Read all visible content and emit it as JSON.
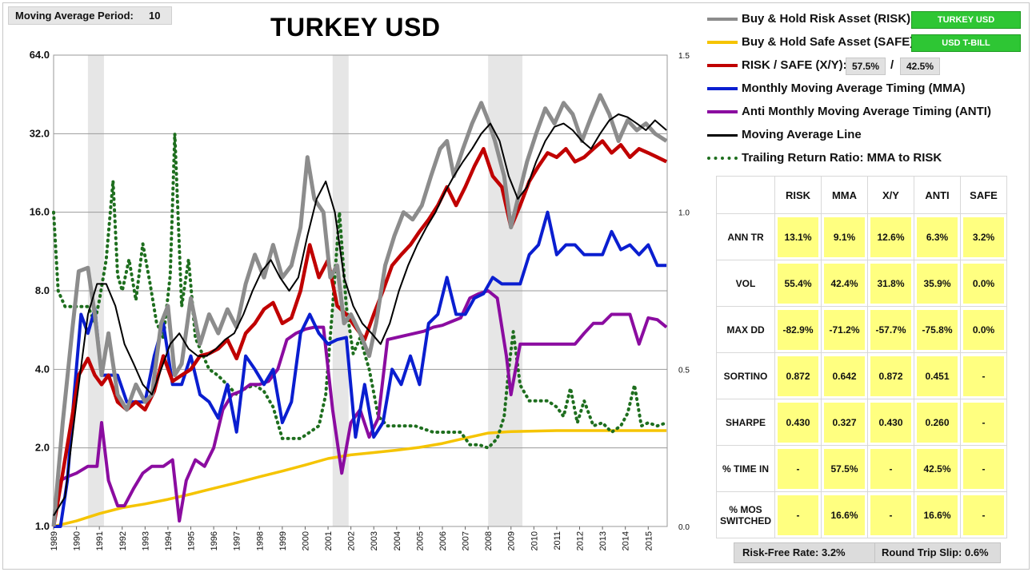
{
  "moving_average": {
    "label": "Moving Average Period:",
    "value": "10"
  },
  "title": "TURKEY USD",
  "legend": {
    "risk": {
      "label": "Buy & Hold Risk Asset (RISK):",
      "asset": "TURKEY USD",
      "color": "#8c8c8c"
    },
    "safe": {
      "label": "Buy & Hold Safe Asset (SAFE):",
      "asset": "USD T-BILL",
      "color": "#f5c400"
    },
    "ratio": {
      "label": "RISK / SAFE (X/Y):",
      "risk_pct": "57.5%",
      "separator": "/",
      "safe_pct": "42.5%",
      "color": "#c00000"
    },
    "mma": {
      "label": "Monthly Moving Average Timing (MMA)",
      "color": "#0a1ed0"
    },
    "anti": {
      "label": "Anti Monthly Moving Average Timing (ANTI)",
      "color": "#8b0ca0"
    },
    "ma_line": {
      "label": "Moving Average Line",
      "color": "#000000"
    },
    "trailing": {
      "label": "Trailing Return Ratio: MMA to RISK",
      "color": "#1e6e1e"
    }
  },
  "stats_table": {
    "columns": [
      "RISK",
      "MMA",
      "X/Y",
      "ANTI",
      "SAFE"
    ],
    "rows": [
      {
        "label": "ANN TR",
        "values": [
          "13.1%",
          "9.1%",
          "12.6%",
          "6.3%",
          "3.2%"
        ]
      },
      {
        "label": "VOL",
        "values": [
          "55.4%",
          "42.4%",
          "31.8%",
          "35.9%",
          "0.0%"
        ]
      },
      {
        "label": "MAX DD",
        "values": [
          "-82.9%",
          "-71.2%",
          "-57.7%",
          "-75.8%",
          "0.0%"
        ]
      },
      {
        "label": "SORTINO",
        "values": [
          "0.872",
          "0.642",
          "0.872",
          "0.451",
          "-"
        ]
      },
      {
        "label": "SHARPE",
        "values": [
          "0.430",
          "0.327",
          "0.430",
          "0.260",
          "-"
        ]
      },
      {
        "label": "% TIME IN",
        "values": [
          "-",
          "57.5%",
          "-",
          "42.5%",
          "-"
        ]
      },
      {
        "label": "% MOS SWITCHED",
        "values": [
          "-",
          "16.6%",
          "-",
          "16.6%",
          "-"
        ]
      }
    ]
  },
  "footer": {
    "risk_free": "Risk-Free Rate:   3.2%",
    "slip": "Round Trip Slip:  0.6%"
  },
  "chart_data": {
    "type": "line",
    "title": "TURKEY USD",
    "y_scale": "log2",
    "ylim": [
      1,
      64
    ],
    "y_ticks": [
      "64.0",
      "32.0",
      "16.0",
      "8.0",
      "4.0",
      "2.0",
      "1.0"
    ],
    "y2lim": [
      0,
      1.5
    ],
    "y2_ticks": [
      "1.5",
      "1.0",
      "0.5",
      "0.0"
    ],
    "xlim": [
      1989,
      2015.83
    ],
    "x_ticks": [
      "1989",
      "1990",
      "1991",
      "1992",
      "1993",
      "1994",
      "1995",
      "1996",
      "1997",
      "1998",
      "1999",
      "2000",
      "2001",
      "2002",
      "2003",
      "2004",
      "2005",
      "2006",
      "2007",
      "2008",
      "2009",
      "2010",
      "2011",
      "2012",
      "2013",
      "2014",
      "2015"
    ],
    "grid": true,
    "shaded_periods": [
      [
        1990.5,
        1991.2
      ],
      [
        2001.2,
        2001.9
      ],
      [
        2008.0,
        2009.5
      ]
    ],
    "series": [
      {
        "name": "Buy & Hold Risk Asset (RISK)",
        "key": "risk",
        "color": "#8c8c8c",
        "x": [
          1989.0,
          1989.4,
          1989.8,
          1990.1,
          1990.5,
          1990.8,
          1991.1,
          1991.4,
          1991.8,
          1992.2,
          1992.6,
          1993.0,
          1993.3,
          1993.7,
          1994.0,
          1994.3,
          1994.6,
          1995.0,
          1995.4,
          1995.8,
          1996.2,
          1996.6,
          1997.0,
          1997.4,
          1997.8,
          1998.2,
          1998.6,
          1999.0,
          1999.4,
          1999.8,
          2000.1,
          2000.4,
          2000.8,
          2001.1,
          2001.4,
          2001.7,
          2002.0,
          2002.4,
          2002.8,
          2003.1,
          2003.5,
          2003.9,
          2004.3,
          2004.7,
          2005.1,
          2005.5,
          2005.9,
          2006.2,
          2006.5,
          2006.9,
          2007.3,
          2007.7,
          2008.0,
          2008.3,
          2008.7,
          2009.0,
          2009.3,
          2009.7,
          2010.1,
          2010.5,
          2010.9,
          2011.3,
          2011.7,
          2012.1,
          2012.5,
          2012.9,
          2013.3,
          2013.7,
          2014.1,
          2014.5,
          2014.9,
          2015.3,
          2015.8
        ],
        "y": [
          1.0,
          2.5,
          5.5,
          9.5,
          9.8,
          6.5,
          3.8,
          5.5,
          3.2,
          2.8,
          3.5,
          3.0,
          3.2,
          6.0,
          7.0,
          3.8,
          4.2,
          7.5,
          5.0,
          6.5,
          5.5,
          6.8,
          5.8,
          8.5,
          11.0,
          9.0,
          12.0,
          9.0,
          10.0,
          14.0,
          26.0,
          18.0,
          16.0,
          9.0,
          10.0,
          6.0,
          6.5,
          5.5,
          4.5,
          6.0,
          10.0,
          13.0,
          16.0,
          15.0,
          17.0,
          22.0,
          28.0,
          30.0,
          22.0,
          28.0,
          35.0,
          42.0,
          36.0,
          30.0,
          22.0,
          14.0,
          18.0,
          25.0,
          32.0,
          40.0,
          35.0,
          42.0,
          38.0,
          30.0,
          37.0,
          45.0,
          38.0,
          30.0,
          36.0,
          33.0,
          35.0,
          32.0,
          30.0
        ]
      },
      {
        "name": "Buy & Hold Safe Asset (SAFE)",
        "key": "safe",
        "color": "#f5c400",
        "x": [
          1989.0,
          1990.0,
          1991.0,
          1992.0,
          1993.0,
          1994.0,
          1995.0,
          1996.0,
          1997.0,
          1998.0,
          1999.0,
          2000.0,
          2001.0,
          2002.0,
          2003.0,
          2004.0,
          2005.0,
          2006.0,
          2007.0,
          2008.0,
          2009.0,
          2010.0,
          2011.0,
          2012.0,
          2013.0,
          2014.0,
          2015.0,
          2015.8
        ],
        "y": [
          1.0,
          1.05,
          1.12,
          1.18,
          1.22,
          1.27,
          1.33,
          1.4,
          1.47,
          1.55,
          1.63,
          1.72,
          1.82,
          1.88,
          1.92,
          1.96,
          2.01,
          2.08,
          2.18,
          2.28,
          2.31,
          2.32,
          2.33,
          2.33,
          2.33,
          2.33,
          2.33,
          2.33
        ]
      },
      {
        "name": "RISK / SAFE (X/Y)",
        "key": "ratio",
        "color": "#c00000",
        "x": [
          1989.0,
          1989.4,
          1989.8,
          1990.1,
          1990.5,
          1990.8,
          1991.1,
          1991.4,
          1991.8,
          1992.2,
          1992.6,
          1993.0,
          1993.4,
          1993.8,
          1994.2,
          1994.6,
          1995.0,
          1995.4,
          1995.8,
          1996.2,
          1996.6,
          1997.0,
          1997.4,
          1997.8,
          1998.2,
          1998.6,
          1999.0,
          1999.4,
          1999.8,
          2000.2,
          2000.6,
          2001.0,
          2001.4,
          2001.8,
          2002.2,
          2002.6,
          2003.0,
          2003.4,
          2003.8,
          2004.2,
          2004.6,
          2005.0,
          2005.4,
          2005.8,
          2006.2,
          2006.6,
          2007.0,
          2007.4,
          2007.8,
          2008.2,
          2008.6,
          2009.0,
          2009.4,
          2009.8,
          2010.2,
          2010.6,
          2011.0,
          2011.4,
          2011.8,
          2012.2,
          2012.6,
          2013.0,
          2013.4,
          2013.8,
          2014.2,
          2014.6,
          2015.0,
          2015.4,
          2015.8
        ],
        "y": [
          1.0,
          1.6,
          2.6,
          3.8,
          4.4,
          3.8,
          3.5,
          3.8,
          3.0,
          2.8,
          3.0,
          2.8,
          3.3,
          4.5,
          3.6,
          3.8,
          4.0,
          4.5,
          4.6,
          4.8,
          5.2,
          4.4,
          5.5,
          6.0,
          6.8,
          7.2,
          6.0,
          6.3,
          8.0,
          12.0,
          9.0,
          10.5,
          7.0,
          6.5,
          5.8,
          5.2,
          6.5,
          8.0,
          10.0,
          11.0,
          12.0,
          13.5,
          15.0,
          17.0,
          20.0,
          17.0,
          20.0,
          24.0,
          28.0,
          22.0,
          20.0,
          14.0,
          17.0,
          21.0,
          24.0,
          27.0,
          26.0,
          28.0,
          25.0,
          26.0,
          28.0,
          30.0,
          27.0,
          29.0,
          26.0,
          28.0,
          27.0,
          26.0,
          25.0
        ]
      },
      {
        "name": "Monthly Moving Average Timing (MMA)",
        "key": "mma",
        "color": "#0a1ed0",
        "x": [
          1989.0,
          1989.3,
          1989.6,
          1989.9,
          1990.2,
          1990.5,
          1990.8,
          1991.1,
          1991.5,
          1991.8,
          1992.2,
          1992.6,
          1993.0,
          1993.4,
          1993.8,
          1994.2,
          1994.6,
          1995.0,
          1995.4,
          1995.8,
          1996.2,
          1996.6,
          1997.0,
          1997.4,
          1997.8,
          1998.2,
          1998.6,
          1999.0,
          1999.4,
          1999.8,
          2000.2,
          2000.6,
          2001.0,
          2001.4,
          2001.8,
          2002.2,
          2002.6,
          2003.0,
          2003.4,
          2003.8,
          2004.2,
          2004.6,
          2005.0,
          2005.4,
          2005.8,
          2006.2,
          2006.6,
          2007.0,
          2007.4,
          2007.8,
          2008.2,
          2008.6,
          2009.0,
          2009.4,
          2009.8,
          2010.2,
          2010.6,
          2011.0,
          2011.4,
          2011.8,
          2012.2,
          2012.6,
          2013.0,
          2013.4,
          2013.8,
          2014.2,
          2014.6,
          2015.0,
          2015.4,
          2015.8
        ],
        "y": [
          1.0,
          1.0,
          1.5,
          3.2,
          6.5,
          5.5,
          6.8,
          3.8,
          3.8,
          3.8,
          3.0,
          3.0,
          3.0,
          4.5,
          6.0,
          3.5,
          3.5,
          4.5,
          3.2,
          3.0,
          2.6,
          3.5,
          2.3,
          4.5,
          4.0,
          3.5,
          4.0,
          2.5,
          3.0,
          5.5,
          6.5,
          5.5,
          5.0,
          5.2,
          5.3,
          2.2,
          3.5,
          2.2,
          2.5,
          4.0,
          3.5,
          4.5,
          3.5,
          6.0,
          6.5,
          9.0,
          6.5,
          6.5,
          7.5,
          7.8,
          9.0,
          8.5,
          8.5,
          8.5,
          11.0,
          12.0,
          16.0,
          11.0,
          12.0,
          12.0,
          11.0,
          11.0,
          11.0,
          13.5,
          11.5,
          12.0,
          11.0,
          12.0,
          10.0,
          10.0
        ]
      },
      {
        "name": "Anti Monthly Moving Average Timing (ANTI)",
        "key": "anti",
        "color": "#8b0ca0",
        "x": [
          1989.0,
          1989.3,
          1989.6,
          1990.0,
          1990.5,
          1990.9,
          1991.1,
          1991.4,
          1991.8,
          1992.1,
          1992.5,
          1992.9,
          1993.3,
          1993.8,
          1994.2,
          1994.5,
          1994.8,
          1995.2,
          1995.6,
          1996.0,
          1996.4,
          1996.8,
          1997.2,
          1997.6,
          1998.0,
          1998.4,
          1998.8,
          1999.2,
          1999.6,
          2000.0,
          2000.4,
          2000.8,
          2001.2,
          2001.6,
          2002.0,
          2002.4,
          2002.8,
          2003.2,
          2003.6,
          2004.0,
          2004.4,
          2004.8,
          2005.2,
          2005.6,
          2006.0,
          2006.4,
          2006.8,
          2007.2,
          2007.6,
          2008.0,
          2008.4,
          2008.8,
          2009.0,
          2009.4,
          2009.8,
          2010.2,
          2010.6,
          2011.0,
          2011.4,
          2011.8,
          2012.2,
          2012.6,
          2013.0,
          2013.4,
          2013.8,
          2014.2,
          2014.6,
          2015.0,
          2015.4,
          2015.8
        ],
        "y": [
          1.0,
          1.5,
          1.55,
          1.6,
          1.7,
          1.7,
          2.5,
          1.5,
          1.2,
          1.2,
          1.4,
          1.6,
          1.7,
          1.7,
          1.8,
          1.05,
          1.5,
          1.8,
          1.7,
          2.0,
          2.8,
          3.2,
          3.3,
          3.5,
          3.5,
          3.6,
          4.0,
          5.2,
          5.5,
          5.7,
          5.8,
          5.8,
          2.8,
          1.6,
          2.5,
          2.8,
          2.2,
          2.6,
          5.2,
          5.3,
          5.4,
          5.5,
          5.6,
          5.8,
          5.9,
          6.1,
          6.3,
          7.5,
          7.8,
          8.0,
          7.5,
          4.5,
          3.2,
          5.0,
          5.0,
          5.0,
          5.0,
          5.0,
          5.0,
          5.0,
          5.5,
          6.0,
          6.0,
          6.5,
          6.5,
          6.5,
          5.0,
          6.3,
          6.2,
          5.8
        ]
      },
      {
        "name": "Moving Average Line",
        "key": "ma",
        "color": "#000000",
        "x": [
          1989.0,
          1989.5,
          1990.0,
          1990.5,
          1990.9,
          1991.3,
          1991.7,
          1992.1,
          1992.5,
          1992.9,
          1993.3,
          1993.7,
          1994.1,
          1994.5,
          1994.9,
          1995.3,
          1995.7,
          1996.1,
          1996.5,
          1996.9,
          1997.3,
          1997.7,
          1998.1,
          1998.5,
          1998.9,
          1999.3,
          1999.7,
          2000.1,
          2000.5,
          2000.9,
          2001.3,
          2001.7,
          2002.1,
          2002.5,
          2002.9,
          2003.3,
          2003.7,
          2004.1,
          2004.5,
          2004.9,
          2005.3,
          2005.7,
          2006.1,
          2006.5,
          2006.9,
          2007.3,
          2007.7,
          2008.1,
          2008.5,
          2008.9,
          2009.3,
          2009.7,
          2010.1,
          2010.5,
          2010.9,
          2011.3,
          2011.7,
          2012.1,
          2012.5,
          2012.9,
          2013.3,
          2013.7,
          2014.1,
          2014.5,
          2014.9,
          2015.3,
          2015.8
        ],
        "y": [
          1.1,
          1.3,
          3.0,
          6.5,
          8.5,
          8.5,
          7.0,
          5.0,
          4.2,
          3.5,
          3.2,
          4.0,
          5.0,
          5.5,
          4.8,
          4.5,
          4.5,
          4.8,
          5.2,
          5.5,
          6.5,
          8.0,
          9.5,
          10.5,
          9.0,
          8.0,
          9.0,
          13.0,
          18.0,
          21.0,
          16.0,
          9.0,
          7.0,
          6.0,
          5.5,
          5.0,
          6.0,
          8.0,
          10.0,
          12.0,
          14.0,
          16.0,
          19.0,
          22.0,
          25.0,
          28.0,
          32.0,
          35.0,
          30.0,
          22.0,
          18.0,
          20.0,
          25.0,
          30.0,
          34.0,
          35.0,
          33.0,
          30.0,
          28.0,
          32.0,
          36.0,
          38.0,
          37.0,
          35.0,
          33.0,
          36.0,
          33.0
        ]
      },
      {
        "name": "Trailing Return Ratio: MMA to RISK",
        "key": "trail",
        "color": "#1e6e1e",
        "axis": "secondary",
        "x": [
          1989.0,
          1989.2,
          1989.5,
          1990.0,
          1990.5,
          1990.8,
          1991.0,
          1991.3,
          1991.6,
          1991.8,
          1992.0,
          1992.3,
          1992.6,
          1992.9,
          1993.2,
          1993.5,
          1993.8,
          1994.1,
          1994.3,
          1994.6,
          1994.9,
          1995.2,
          1995.5,
          1995.8,
          1996.2,
          1996.6,
          1997.0,
          1997.4,
          1997.8,
          1998.2,
          1998.6,
          1999.0,
          1999.4,
          1999.8,
          2000.2,
          2000.6,
          2000.9,
          2001.2,
          2001.5,
          2001.8,
          2002.1,
          2002.4,
          2002.8,
          2003.2,
          2003.6,
          2004.0,
          2004.4,
          2004.8,
          2005.2,
          2005.6,
          2006.0,
          2006.4,
          2006.8,
          2007.2,
          2007.6,
          2008.0,
          2008.4,
          2008.7,
          2008.9,
          2009.1,
          2009.4,
          2009.8,
          2010.2,
          2010.6,
          2011.0,
          2011.3,
          2011.6,
          2011.9,
          2012.2,
          2012.6,
          2013.0,
          2013.4,
          2013.8,
          2014.1,
          2014.4,
          2014.7,
          2015.0,
          2015.4,
          2015.8
        ],
        "y": [
          1.0,
          0.75,
          0.7,
          0.7,
          0.7,
          0.65,
          0.72,
          0.85,
          1.1,
          0.8,
          0.75,
          0.85,
          0.72,
          0.9,
          0.78,
          0.65,
          0.6,
          0.8,
          1.25,
          0.7,
          0.85,
          0.6,
          0.55,
          0.5,
          0.48,
          0.45,
          0.42,
          0.44,
          0.45,
          0.43,
          0.38,
          0.28,
          0.28,
          0.28,
          0.3,
          0.32,
          0.42,
          0.7,
          1.0,
          0.7,
          0.55,
          0.6,
          0.5,
          0.35,
          0.32,
          0.32,
          0.32,
          0.32,
          0.31,
          0.3,
          0.3,
          0.3,
          0.3,
          0.26,
          0.26,
          0.25,
          0.28,
          0.35,
          0.5,
          0.62,
          0.45,
          0.4,
          0.4,
          0.4,
          0.38,
          0.35,
          0.44,
          0.33,
          0.4,
          0.32,
          0.33,
          0.3,
          0.32,
          0.36,
          0.45,
          0.32,
          0.33,
          0.32,
          0.33
        ]
      }
    ]
  }
}
